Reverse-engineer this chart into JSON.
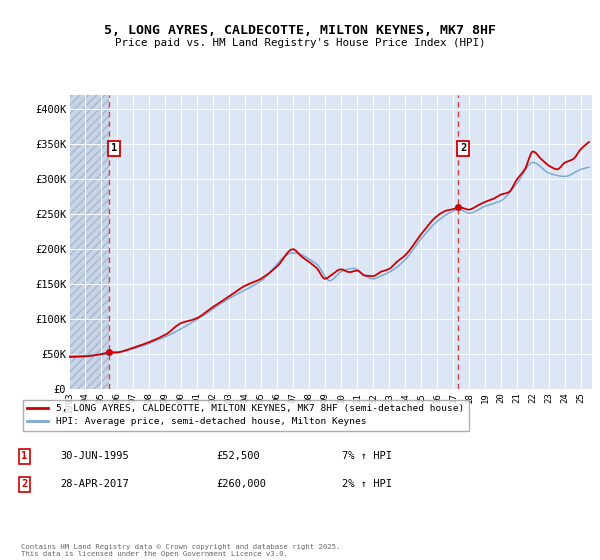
{
  "title_line1": "5, LONG AYRES, CALDECOTTE, MILTON KEYNES, MK7 8HF",
  "title_line2": "Price paid vs. HM Land Registry's House Price Index (HPI)",
  "background_color": "#ffffff",
  "plot_bg_color": "#dce6f5",
  "grid_color": "#ffffff",
  "red_line_color": "#cc0000",
  "blue_line_color": "#7baad4",
  "dashed_line_color": "#cc4444",
  "marker_color": "#cc0000",
  "legend_entry1": "5, LONG AYRES, CALDECOTTE, MILTON KEYNES, MK7 8HF (semi-detached house)",
  "legend_entry2": "HPI: Average price, semi-detached house, Milton Keynes",
  "annotation1_date": "30-JUN-1995",
  "annotation1_price": "£52,500",
  "annotation1_hpi": "7% ↑ HPI",
  "annotation2_date": "28-APR-2017",
  "annotation2_price": "£260,000",
  "annotation2_hpi": "2% ↑ HPI",
  "copyright_text": "Contains HM Land Registry data © Crown copyright and database right 2025.\nThis data is licensed under the Open Government Licence v3.0.",
  "ylim": [
    0,
    420000
  ],
  "yticks": [
    0,
    50000,
    100000,
    150000,
    200000,
    250000,
    300000,
    350000,
    400000
  ],
  "ytick_labels": [
    "£0",
    "£50K",
    "£100K",
    "£150K",
    "£200K",
    "£250K",
    "£300K",
    "£350K",
    "£400K"
  ],
  "sale1_x": 1995.5,
  "sale1_y": 52500,
  "sale2_x": 2017.33,
  "sale2_y": 260000,
  "xmin": 1993.0,
  "xmax": 2025.7,
  "xticks": [
    1993,
    1994,
    1995,
    1996,
    1997,
    1998,
    1999,
    2000,
    2001,
    2002,
    2003,
    2004,
    2005,
    2006,
    2007,
    2008,
    2009,
    2010,
    2011,
    2012,
    2013,
    2014,
    2015,
    2016,
    2017,
    2018,
    2019,
    2020,
    2021,
    2022,
    2023,
    2024,
    2025
  ]
}
